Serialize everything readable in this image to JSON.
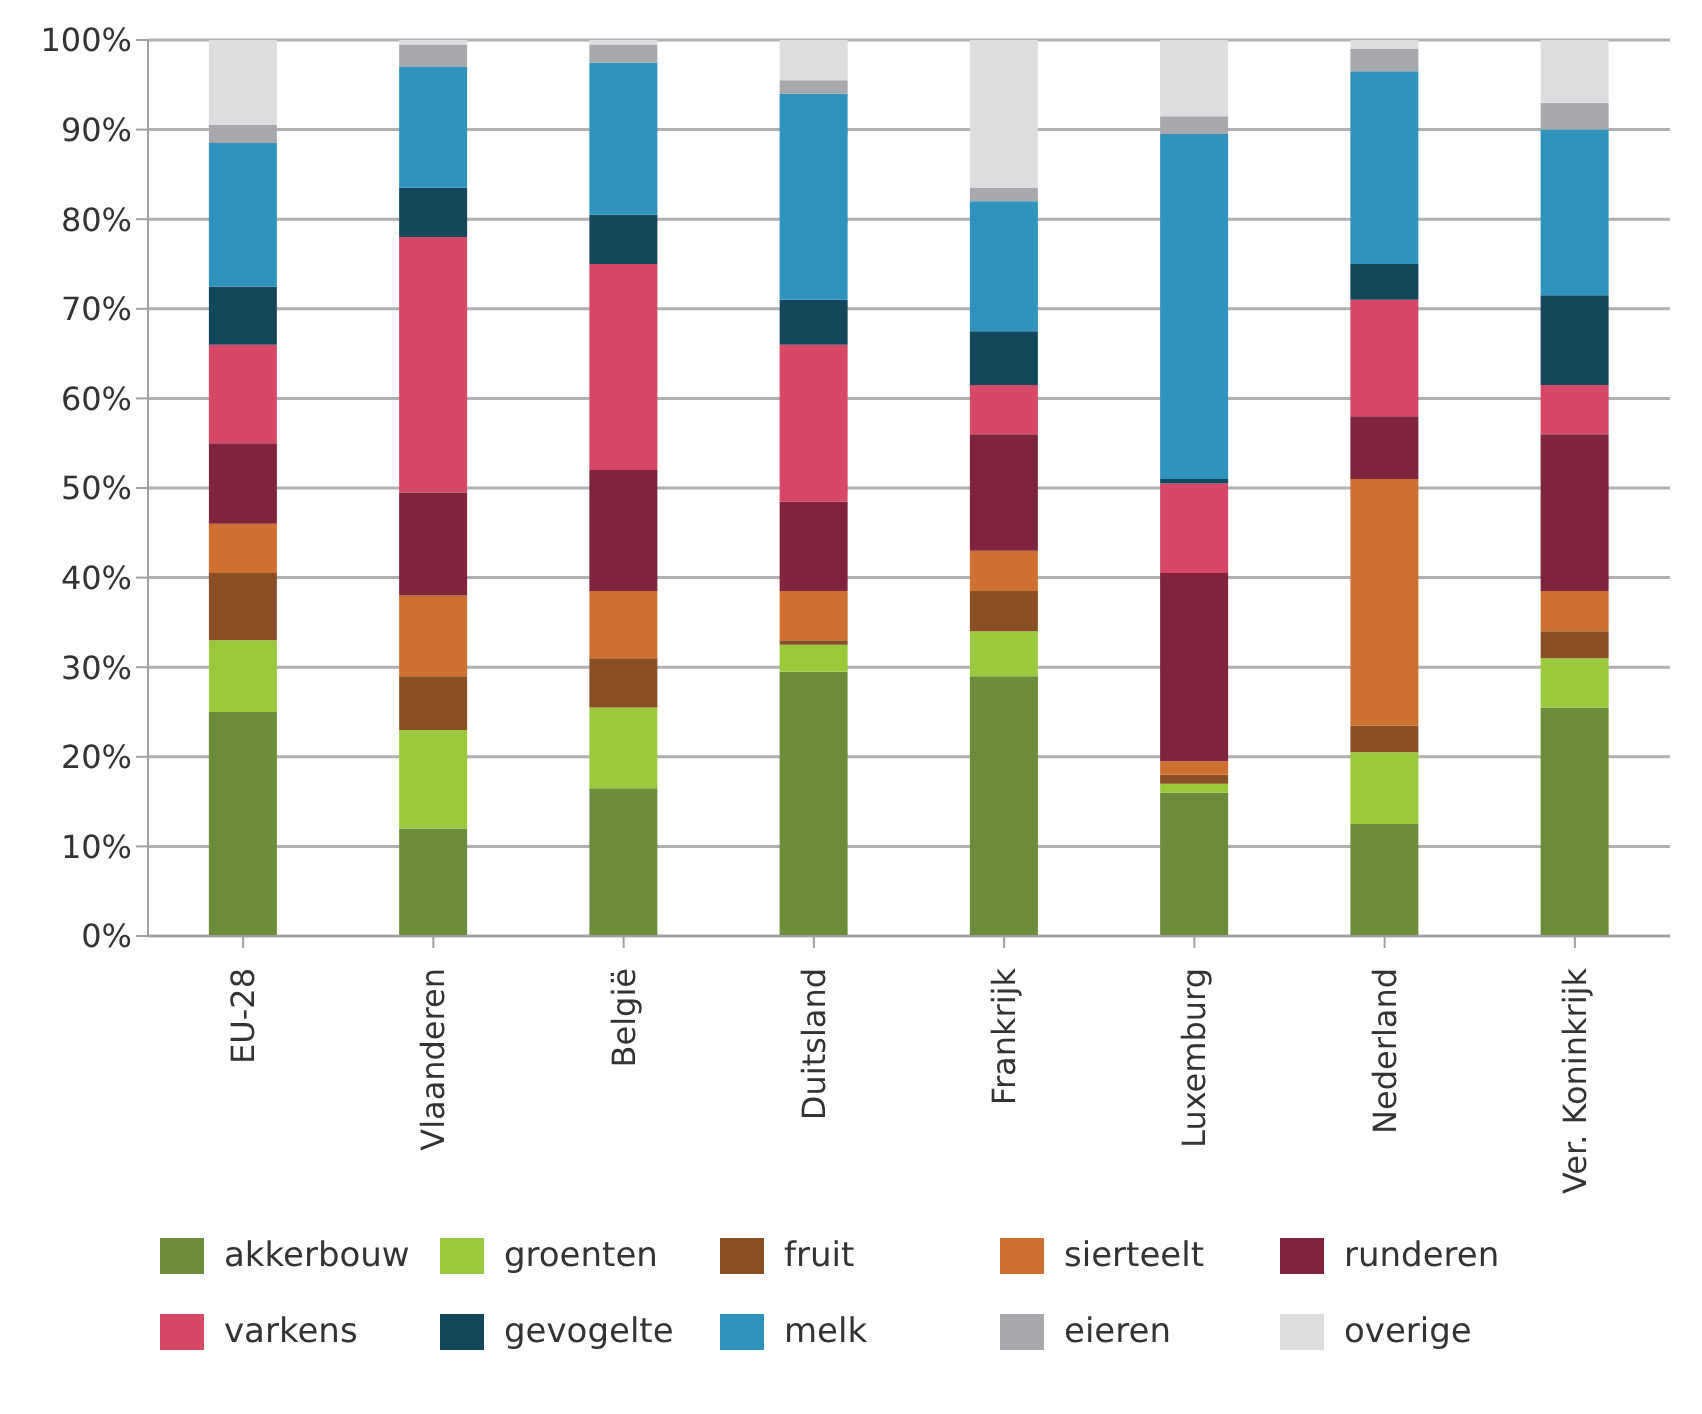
{
  "chart_data": {
    "type": "bar",
    "stacked": true,
    "categories": [
      "EU-28",
      "Vlaanderen",
      "België",
      "Duitsland",
      "Frankrijk",
      "Luxemburg",
      "Nederland",
      "Ver. Koninkrijk"
    ],
    "series": [
      {
        "name": "akkerbouw",
        "color": "#6b8c3a",
        "values": [
          25,
          12,
          16.5,
          29.5,
          29,
          16,
          12.5,
          25.5
        ]
      },
      {
        "name": "groenten",
        "color": "#9aca3c",
        "values": [
          8,
          11,
          9,
          3,
          5,
          1,
          8,
          5.5
        ]
      },
      {
        "name": "fruit",
        "color": "#8a4f24",
        "values": [
          7.5,
          6,
          5.5,
          0.5,
          4.5,
          1,
          3,
          3
        ]
      },
      {
        "name": "sierteelt",
        "color": "#cf7030",
        "values": [
          5.5,
          9,
          7.5,
          5.5,
          4.5,
          1.5,
          27.5,
          4.5
        ]
      },
      {
        "name": "runderen",
        "color": "#80233c",
        "values": [
          9,
          11.5,
          13.5,
          10,
          13,
          21,
          7,
          17.5
        ]
      },
      {
        "name": "varkens",
        "color": "#d64866",
        "values": [
          11,
          28.5,
          23,
          17.5,
          5.5,
          10,
          13,
          5.5
        ]
      },
      {
        "name": "gevogelte",
        "color": "#14475c",
        "values": [
          6.5,
          5.5,
          5.5,
          5,
          6,
          0.5,
          4,
          10
        ]
      },
      {
        "name": "melk",
        "color": "#2e93bd",
        "values": [
          16,
          13.5,
          17,
          23,
          14.5,
          38.5,
          21.5,
          18.5
        ]
      },
      {
        "name": "eieren",
        "color": "#a7a9ac",
        "values": [
          2,
          2.5,
          2,
          1.5,
          1.5,
          2,
          2.5,
          3
        ]
      },
      {
        "name": "overige",
        "color": "#dcdddf",
        "values": [
          9.5,
          0.5,
          0.5,
          4.5,
          16.5,
          8.5,
          1,
          7
        ]
      }
    ],
    "ylim": [
      0,
      100
    ],
    "yticks": [
      {
        "value": 0,
        "label": "0%"
      },
      {
        "value": 10,
        "label": "10%"
      },
      {
        "value": 20,
        "label": "20%"
      },
      {
        "value": 30,
        "label": "30%"
      },
      {
        "value": 40,
        "label": "40%"
      },
      {
        "value": 50,
        "label": "50%"
      },
      {
        "value": 60,
        "label": "60%"
      },
      {
        "value": 70,
        "label": "70%"
      },
      {
        "value": 80,
        "label": "80%"
      },
      {
        "value": 90,
        "label": "90%"
      },
      {
        "value": 100,
        "label": "100%"
      }
    ],
    "grid": "y",
    "legend": "bottom"
  }
}
